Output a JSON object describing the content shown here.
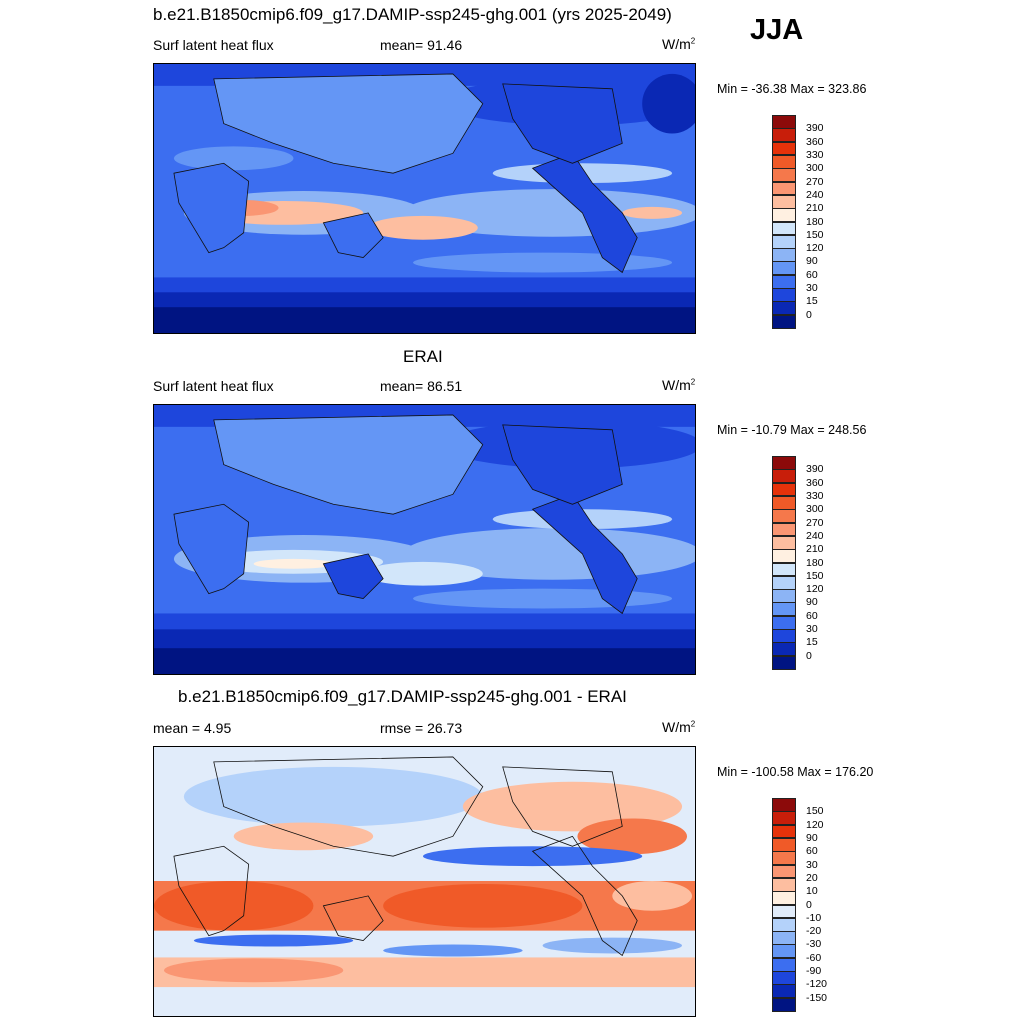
{
  "season": "JJA",
  "panels": [
    {
      "title": "b.e21.B1850cmip6.f09_g17.DAMIP-ssp245-ghg.001 (yrs 2025-2049)",
      "left_label": "Surf latent heat flux",
      "center_label": "mean=  91.46",
      "units": "W/m",
      "units_sup": "2",
      "minmax": "Min = -36.38 Max = 323.86"
    },
    {
      "title": "ERAI",
      "left_label": "Surf latent heat flux",
      "center_label": "mean=  86.51",
      "units": "W/m",
      "units_sup": "2",
      "minmax": "Min = -10.79 Max = 248.56"
    },
    {
      "title": "b.e21.B1850cmip6.f09_g17.DAMIP-ssp245-ghg.001 - ERAI",
      "left_label": "mean =   4.95",
      "center_label": "rmse =  26.73",
      "units": "W/m",
      "units_sup": "2",
      "minmax": "Min = -100.58 Max = 176.20"
    }
  ],
  "colorbar_abs": {
    "labels": [
      "390",
      "360",
      "330",
      "300",
      "270",
      "240",
      "210",
      "180",
      "150",
      "120",
      "90",
      "60",
      "30",
      "15",
      "0"
    ],
    "colors": [
      "#8c0a0a",
      "#c81e0a",
      "#e6320a",
      "#f05a28",
      "#f5784b",
      "#fa9673",
      "#fdbea0",
      "#fff0e1",
      "#d2e6fa",
      "#b4d2fa",
      "#8cb4f5",
      "#6496f5",
      "#3c6ef0",
      "#1e46dc",
      "#0a28b4",
      "#001482"
    ]
  },
  "colorbar_diff": {
    "labels": [
      "150",
      "120",
      "90",
      "60",
      "30",
      "20",
      "10",
      "0",
      "-10",
      "-20",
      "-30",
      "-60",
      "-90",
      "-120",
      "-150"
    ],
    "colors": [
      "#8c0a0a",
      "#c81e0a",
      "#e6320a",
      "#f05a28",
      "#f5784b",
      "#fa9673",
      "#fdbea0",
      "#fff0e1",
      "#e1ecfa",
      "#b4d2fa",
      "#8cb4f5",
      "#6496f5",
      "#3c6ef0",
      "#1e46dc",
      "#0a28b4",
      "#001482"
    ]
  }
}
